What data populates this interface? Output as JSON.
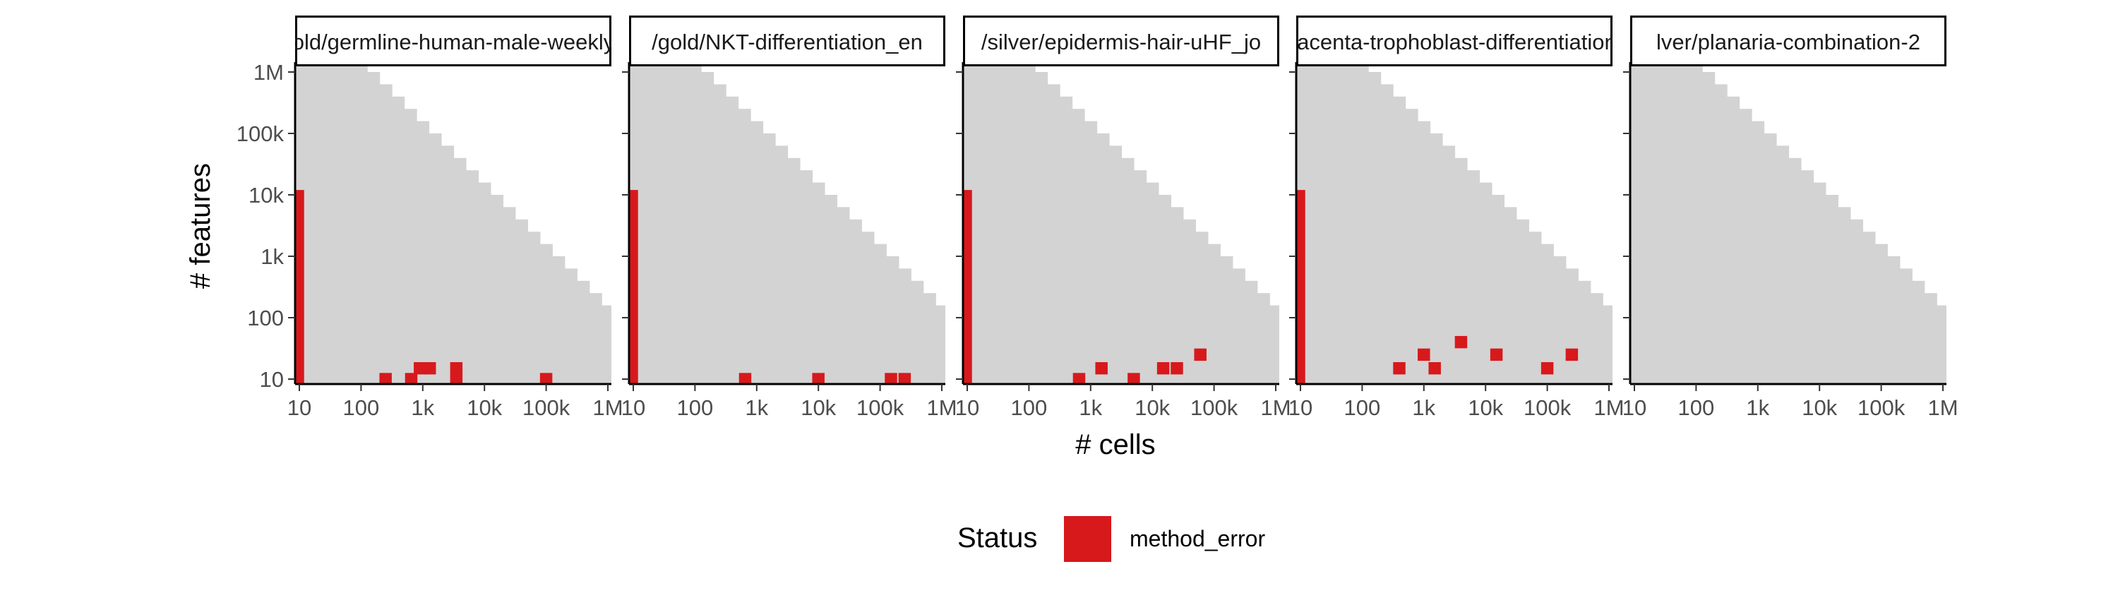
{
  "chart_data": {
    "type": "heatmap",
    "xlabel": "# cells",
    "ylabel": "# features",
    "x_scale": "log10",
    "y_scale": "log10",
    "x_ticks": [
      {
        "value": 10,
        "label": "10"
      },
      {
        "value": 100,
        "label": "100"
      },
      {
        "value": 1000,
        "label": "1k"
      },
      {
        "value": 10000,
        "label": "10k"
      },
      {
        "value": 100000,
        "label": "100k"
      },
      {
        "value": 1000000,
        "label": "1M"
      }
    ],
    "y_ticks": [
      {
        "value": 10,
        "label": "10"
      },
      {
        "value": 100,
        "label": "100"
      },
      {
        "value": 1000,
        "label": "1k"
      },
      {
        "value": 10000,
        "label": "10k"
      },
      {
        "value": 100000,
        "label": "100k"
      },
      {
        "value": 1000000,
        "label": "1M"
      }
    ],
    "xlim": [
      8,
      1200000
    ],
    "ylim": [
      8,
      3000000
    ],
    "background_region": "grey staircase where # cells × # features is below a limit (upper-left region blank)",
    "grid": false,
    "legend": {
      "title": "Status",
      "placement": "bottom",
      "entries": [
        {
          "label": "method_error",
          "color": "#d7191c"
        }
      ]
    },
    "colors": {
      "method_error": "#d7191c",
      "background_region": "#d3d3d3"
    },
    "panels": [
      {
        "strip": "old/germline-human-male-weekly",
        "points": [
          {
            "x": 10,
            "y": 12000,
            "note": "tall column from 10 to ~12k features"
          },
          {
            "x": 250,
            "y": 10
          },
          {
            "x": 650,
            "y": 10
          },
          {
            "x": 900,
            "y": 15
          },
          {
            "x": 1300,
            "y": 15
          },
          {
            "x": 3500,
            "y": 10
          },
          {
            "x": 3500,
            "y": 15
          },
          {
            "x": 100000,
            "y": 10
          }
        ]
      },
      {
        "strip": "/gold/NKT-differentiation_en",
        "points": [
          {
            "x": 10,
            "y": 12000,
            "note": "tall column from 10 to ~12k features"
          },
          {
            "x": 650,
            "y": 10
          },
          {
            "x": 10000,
            "y": 10
          },
          {
            "x": 150000,
            "y": 10
          },
          {
            "x": 250000,
            "y": 10
          }
        ]
      },
      {
        "strip": "/silver/epidermis-hair-uHF_jo",
        "points": [
          {
            "x": 10,
            "y": 12000,
            "note": "tall column from 10 to ~12k features"
          },
          {
            "x": 650,
            "y": 10
          },
          {
            "x": 1500,
            "y": 15
          },
          {
            "x": 5000,
            "y": 10
          },
          {
            "x": 15000,
            "y": 15
          },
          {
            "x": 25000,
            "y": 15
          },
          {
            "x": 60000,
            "y": 25
          }
        ]
      },
      {
        "strip": "lacenta-trophoblast-differentiation",
        "points": [
          {
            "x": 10,
            "y": 12000,
            "note": "tall column from 10 to ~12k features"
          },
          {
            "x": 400,
            "y": 15
          },
          {
            "x": 1000,
            "y": 25
          },
          {
            "x": 1500,
            "y": 15
          },
          {
            "x": 4000,
            "y": 40
          },
          {
            "x": 15000,
            "y": 25
          },
          {
            "x": 100000,
            "y": 15
          },
          {
            "x": 250000,
            "y": 25
          }
        ]
      },
      {
        "strip": "lver/planaria-combination-2",
        "points": []
      }
    ]
  }
}
